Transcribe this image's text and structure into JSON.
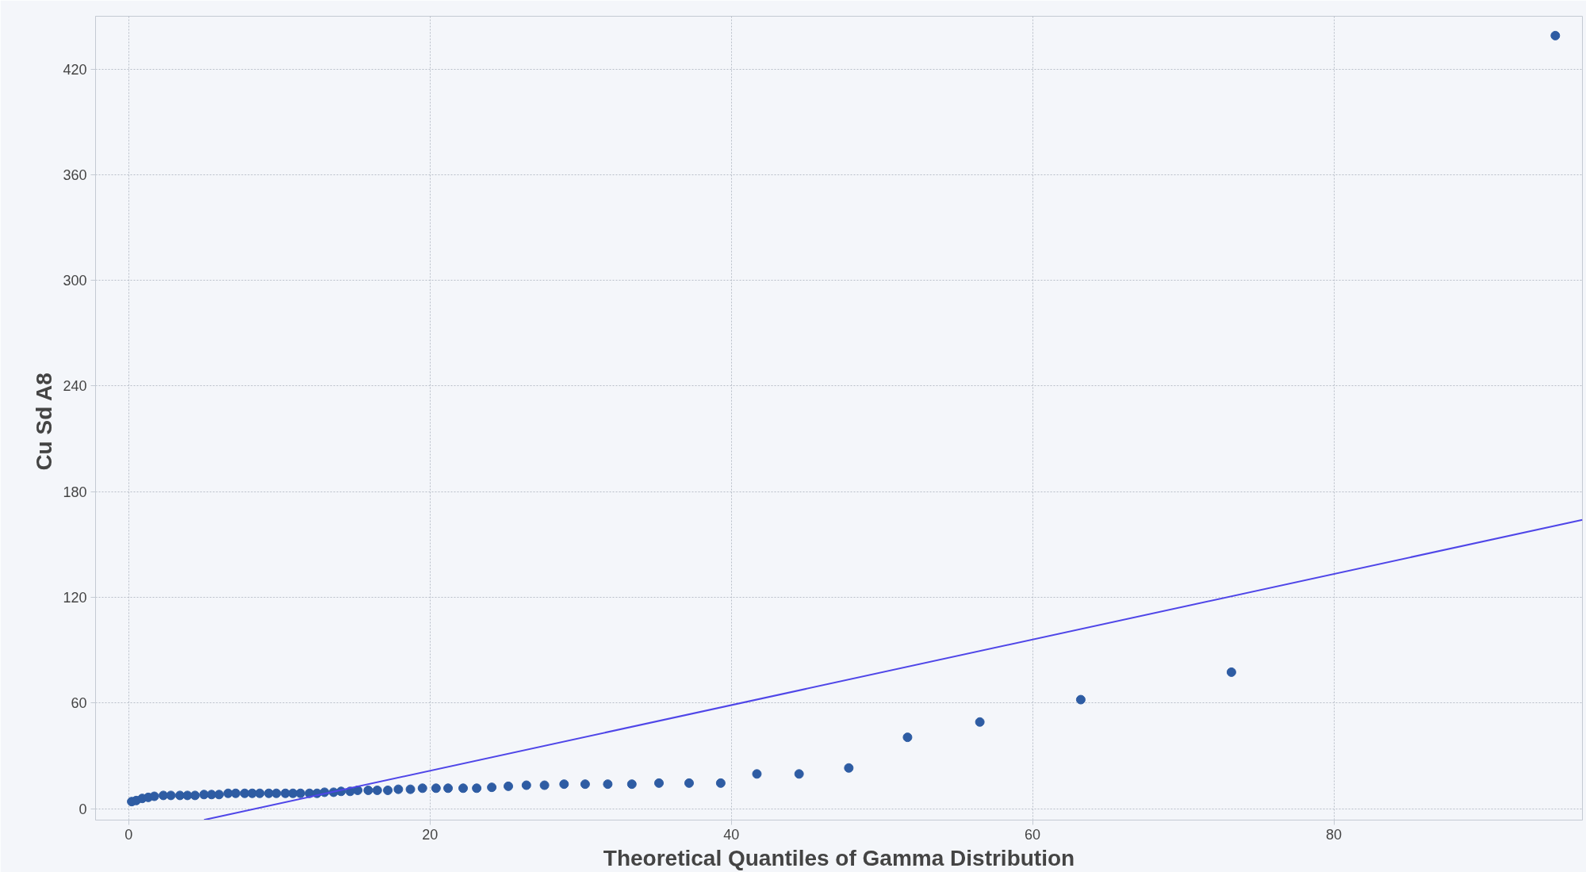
{
  "chart_data": {
    "type": "scatter",
    "xlabel": "Theoretical Quantiles of Gamma Distribution",
    "ylabel": "Cu  Sd A8",
    "xlim": [
      -2.2,
      96.5
    ],
    "ylim": [
      -6.5,
      450
    ],
    "xticks": [
      0,
      20,
      40,
      60,
      80
    ],
    "yticks": [
      0,
      60,
      120,
      180,
      240,
      300,
      360,
      420
    ],
    "grid": true,
    "series": [
      {
        "marker": "circle",
        "color": "#2e5ca3",
        "x": [
          0.2,
          0.5,
          0.9,
          1.3,
          1.7,
          2.3,
          2.8,
          3.4,
          3.9,
          4.4,
          5,
          5.5,
          6,
          6.6,
          7.1,
          7.7,
          8.2,
          8.7,
          9.3,
          9.8,
          10.4,
          10.9,
          11.4,
          12,
          12.5,
          13,
          13.6,
          14.1,
          14.7,
          15.2,
          15.9,
          16.5,
          17.2,
          17.9,
          18.7,
          19.5,
          20.4,
          21.2,
          22.2,
          23.1,
          24.1,
          25.2,
          26.4,
          27.6,
          28.9,
          30.3,
          31.8,
          33.4,
          35.2,
          37.2,
          39.3,
          41.7,
          44.5,
          47.8,
          51.7,
          56.5,
          63.2,
          73.2,
          94.7
        ],
        "values": [
          4,
          4.6,
          5.8,
          6.4,
          7,
          7.5,
          7.5,
          7.5,
          7.5,
          7.5,
          8,
          8,
          8,
          8.7,
          8.7,
          8.7,
          8.7,
          8.7,
          8.7,
          8.7,
          8.7,
          8.7,
          8.7,
          8.7,
          8.7,
          9.3,
          9.3,
          9.8,
          9.8,
          10.4,
          10.4,
          10.4,
          10.4,
          11,
          11,
          11.6,
          11.6,
          11.6,
          11.6,
          11.6,
          12.1,
          12.7,
          13.3,
          13.3,
          13.9,
          13.9,
          13.9,
          13.9,
          14.5,
          14.5,
          14.5,
          19.7,
          19.7,
          23.1,
          40.5,
          49.2,
          61.9,
          77.5,
          439
        ]
      },
      {
        "type": "line",
        "color": "#4f46e8",
        "marker": "none",
        "line_style": "solid",
        "x": [
          5,
          96.5
        ],
        "values": [
          -6.4,
          164
        ]
      }
    ]
  }
}
